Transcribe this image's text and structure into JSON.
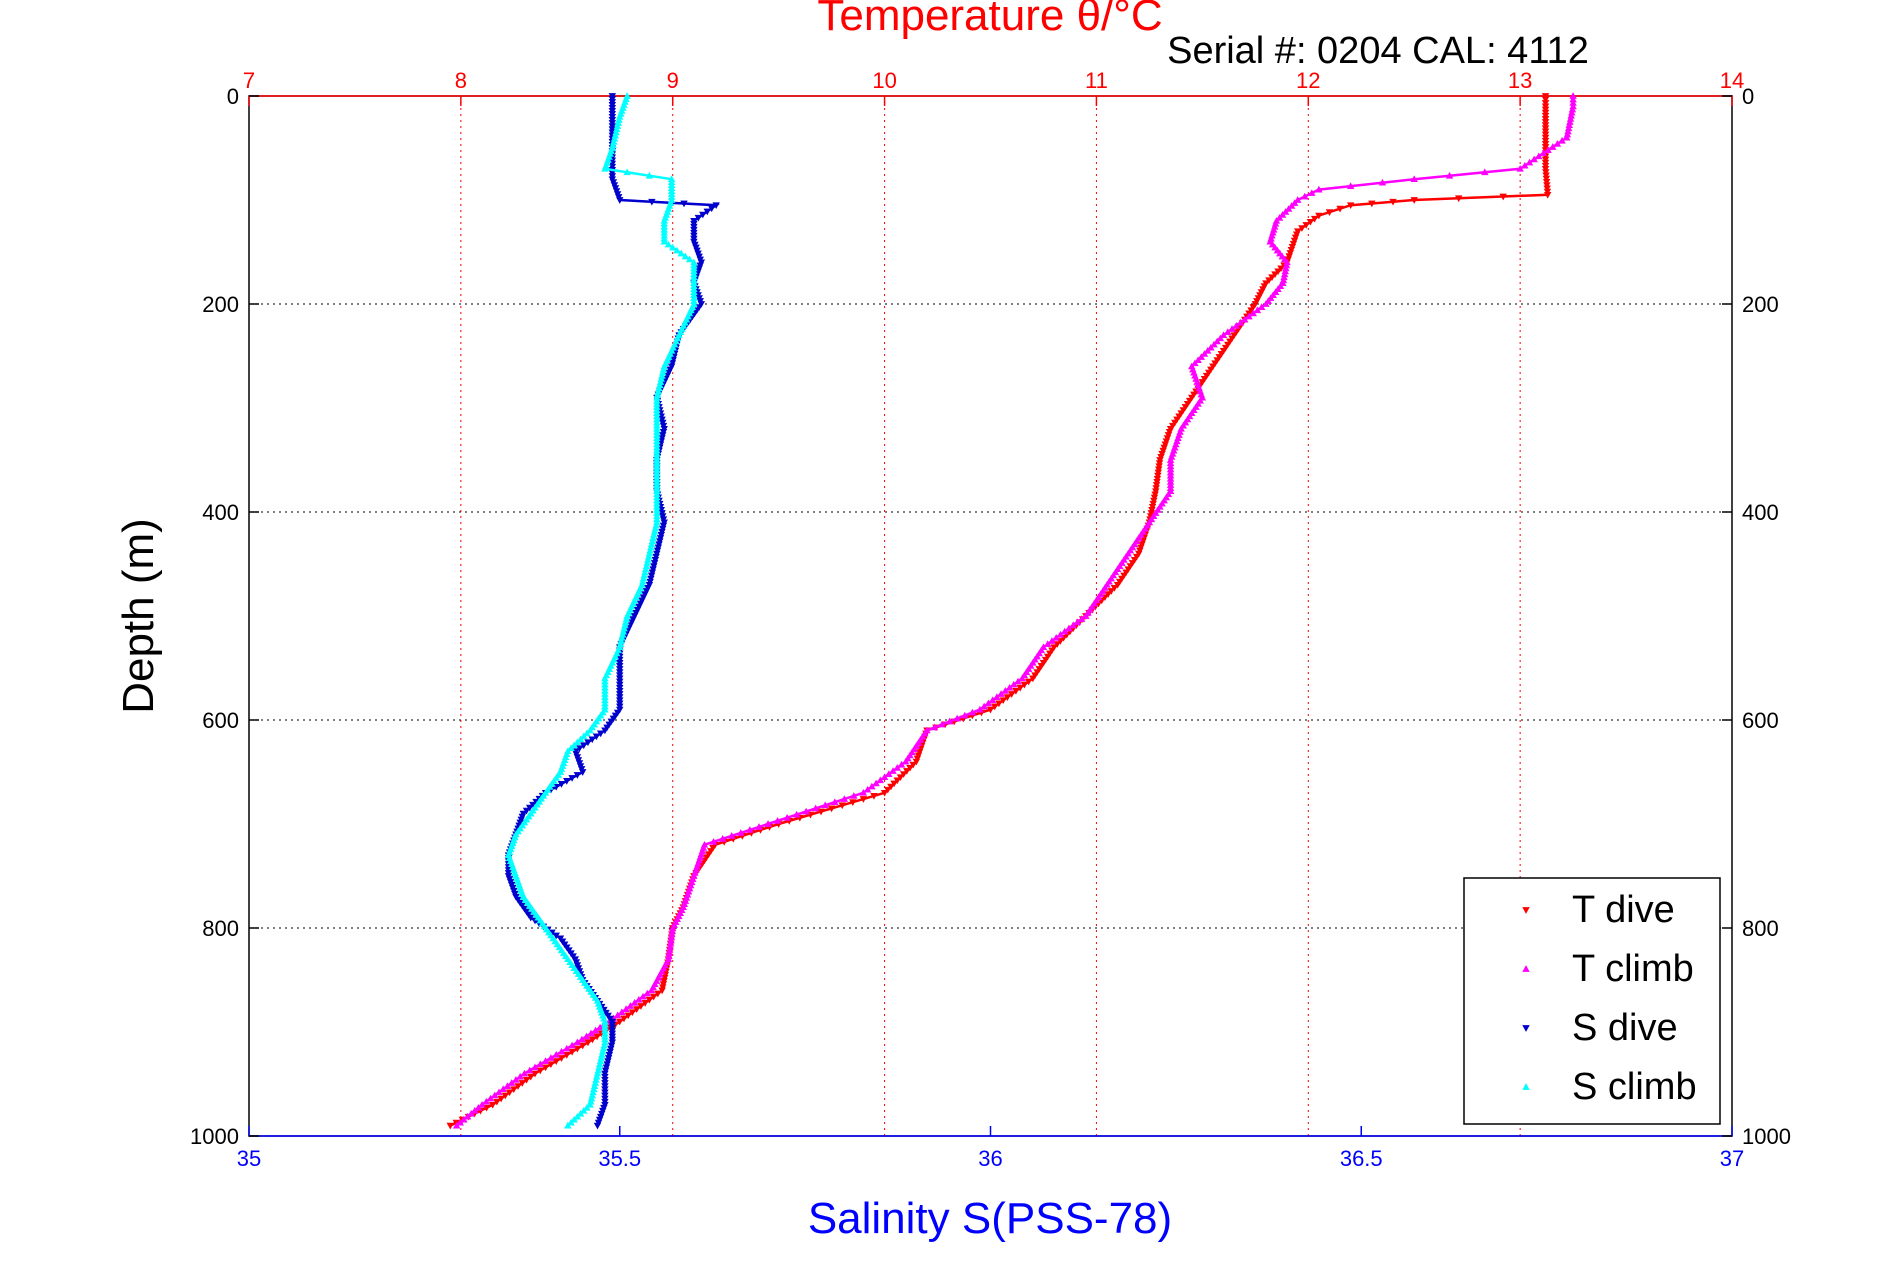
{
  "chart_data": {
    "type": "scatter",
    "title": "Temperature θ/°C",
    "subtitle": "Serial #: 0204  CAL: 4112",
    "xlabel": "Salinity S(PSS-78)",
    "x2label": "Temperature θ/°C",
    "ylabel": "Depth (m)",
    "salinity_xlim": [
      35,
      37
    ],
    "temperature_xlim": [
      7,
      14
    ],
    "ylim": [
      1000,
      0
    ],
    "salinity_ticks": [
      "35",
      "35.5",
      "36",
      "36.5",
      "37"
    ],
    "temperature_ticks": [
      "7",
      "8",
      "9",
      "10",
      "11",
      "12",
      "13",
      "14"
    ],
    "depth_ticks": [
      "0",
      "200",
      "400",
      "600",
      "800",
      "1000"
    ],
    "grid": true,
    "legend_position": "bottom-right",
    "colors": {
      "salinity_axis": "#0000ff",
      "temperature_axis": "#ff0000",
      "T dive": "#ff0000",
      "T climb": "#ff00ff",
      "S dive": "#0000cc",
      "S climb": "#00ffff"
    },
    "series": [
      {
        "name": "T dive",
        "axis": "temperature",
        "marker": "triangle-down",
        "depth": [
          0,
          10,
          40,
          70,
          95,
          100,
          105,
          115,
          130,
          160,
          180,
          200,
          230,
          260,
          290,
          320,
          350,
          380,
          410,
          440,
          470,
          500,
          530,
          560,
          590,
          610,
          640,
          670,
          700,
          720,
          750,
          780,
          800,
          830,
          860,
          890,
          910,
          940,
          970,
          990
        ],
        "values": [
          13.12,
          13.12,
          13.12,
          13.12,
          13.13,
          12.5,
          12.2,
          12.05,
          11.95,
          11.9,
          11.8,
          11.75,
          11.65,
          11.55,
          11.45,
          11.35,
          11.3,
          11.28,
          11.25,
          11.2,
          11.1,
          10.95,
          10.8,
          10.7,
          10.5,
          10.2,
          10.15,
          10.0,
          9.5,
          9.2,
          9.1,
          9.05,
          9.0,
          8.98,
          8.95,
          8.75,
          8.6,
          8.35,
          8.15,
          7.95
        ]
      },
      {
        "name": "T climb",
        "axis": "temperature",
        "marker": "triangle-up",
        "depth": [
          0,
          10,
          40,
          70,
          80,
          90,
          100,
          120,
          140,
          160,
          180,
          200,
          230,
          260,
          290,
          320,
          350,
          380,
          410,
          440,
          470,
          500,
          530,
          560,
          590,
          610,
          640,
          670,
          700,
          720,
          750,
          780,
          800,
          830,
          860,
          890,
          910,
          940,
          970,
          990
        ],
        "values": [
          13.25,
          13.25,
          13.22,
          13.0,
          12.5,
          12.05,
          11.95,
          11.85,
          11.82,
          11.9,
          11.88,
          11.8,
          11.6,
          11.45,
          11.5,
          11.4,
          11.35,
          11.35,
          11.25,
          11.15,
          11.05,
          10.95,
          10.75,
          10.65,
          10.45,
          10.2,
          10.1,
          9.9,
          9.45,
          9.15,
          9.1,
          9.05,
          9.0,
          8.98,
          8.9,
          8.7,
          8.55,
          8.3,
          8.1,
          7.98
        ]
      },
      {
        "name": "S dive",
        "axis": "salinity",
        "marker": "triangle-down",
        "depth": [
          0,
          20,
          50,
          80,
          100,
          105,
          120,
          140,
          160,
          180,
          200,
          230,
          260,
          290,
          320,
          350,
          380,
          410,
          440,
          470,
          500,
          530,
          560,
          590,
          610,
          630,
          650,
          670,
          690,
          710,
          730,
          750,
          770,
          790,
          810,
          830,
          850,
          870,
          890,
          910,
          940,
          970,
          990
        ],
        "values": [
          35.49,
          35.49,
          35.49,
          35.49,
          35.5,
          35.63,
          35.6,
          35.6,
          35.61,
          35.6,
          35.61,
          35.58,
          35.57,
          35.55,
          35.56,
          35.55,
          35.55,
          35.56,
          35.55,
          35.54,
          35.52,
          35.5,
          35.5,
          35.5,
          35.48,
          35.44,
          35.45,
          35.4,
          35.37,
          35.36,
          35.35,
          35.35,
          35.36,
          35.38,
          35.42,
          35.44,
          35.45,
          35.47,
          35.49,
          35.49,
          35.48,
          35.48,
          35.47
        ]
      },
      {
        "name": "S climb",
        "axis": "salinity",
        "marker": "triangle-up",
        "depth": [
          0,
          20,
          50,
          70,
          80,
          100,
          120,
          140,
          160,
          180,
          200,
          230,
          260,
          290,
          320,
          350,
          380,
          410,
          440,
          470,
          500,
          530,
          560,
          590,
          610,
          630,
          650,
          670,
          690,
          710,
          730,
          750,
          770,
          790,
          810,
          830,
          850,
          870,
          890,
          910,
          940,
          970,
          990
        ],
        "values": [
          35.51,
          35.5,
          35.49,
          35.48,
          35.57,
          35.57,
          35.56,
          35.56,
          35.6,
          35.6,
          35.6,
          35.58,
          35.56,
          35.55,
          35.55,
          35.55,
          35.55,
          35.55,
          35.54,
          35.53,
          35.51,
          35.5,
          35.48,
          35.48,
          35.46,
          35.43,
          35.42,
          35.4,
          35.38,
          35.36,
          35.35,
          35.36,
          35.37,
          35.39,
          35.41,
          35.43,
          35.45,
          35.47,
          35.48,
          35.48,
          35.47,
          35.46,
          35.43
        ]
      }
    ]
  }
}
